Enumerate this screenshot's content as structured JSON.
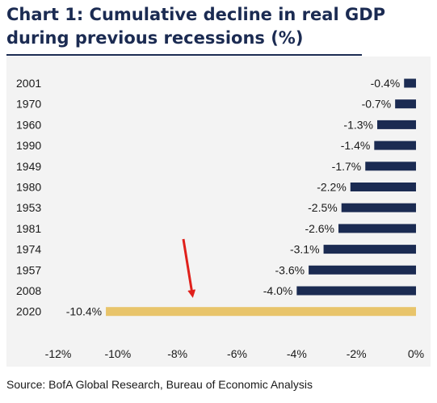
{
  "title": "Chart 1: Cumulative decline in real GDP during previous recessions (%)",
  "source": "Source: BofA Global Research, Bureau of Economic Analysis",
  "chart_data": {
    "type": "bar",
    "orientation": "horizontal",
    "categories": [
      "2001",
      "1970",
      "1960",
      "1990",
      "1949",
      "1980",
      "1953",
      "1981",
      "1974",
      "1957",
      "2008",
      "2020"
    ],
    "values": [
      -0.4,
      -0.7,
      -1.3,
      -1.4,
      -1.7,
      -2.2,
      -2.5,
      -2.6,
      -3.1,
      -3.6,
      -4.0,
      -10.4
    ],
    "value_labels": [
      "-0.4%",
      "-0.7%",
      "-1.3%",
      "-1.4%",
      "-1.7%",
      "-2.2%",
      "-2.5%",
      "-2.6%",
      "-3.1%",
      "-3.6%",
      "-4.0%",
      "-10.4%"
    ],
    "xlim": [
      -12,
      0
    ],
    "xticks": [
      -12,
      -10,
      -8,
      -6,
      -4,
      -2,
      0
    ],
    "xtick_labels": [
      "-12%",
      "-10%",
      "-8%",
      "-6%",
      "-4%",
      "-2%",
      "0%"
    ],
    "grid": false,
    "colors": {
      "bar": "#1b2b52",
      "highlight": "#e8c46a",
      "highlight_category": "2020",
      "arrow": "#e0201b"
    },
    "annotation": {
      "type": "arrow",
      "color": "#e0201b",
      "points_at": "2020"
    }
  }
}
